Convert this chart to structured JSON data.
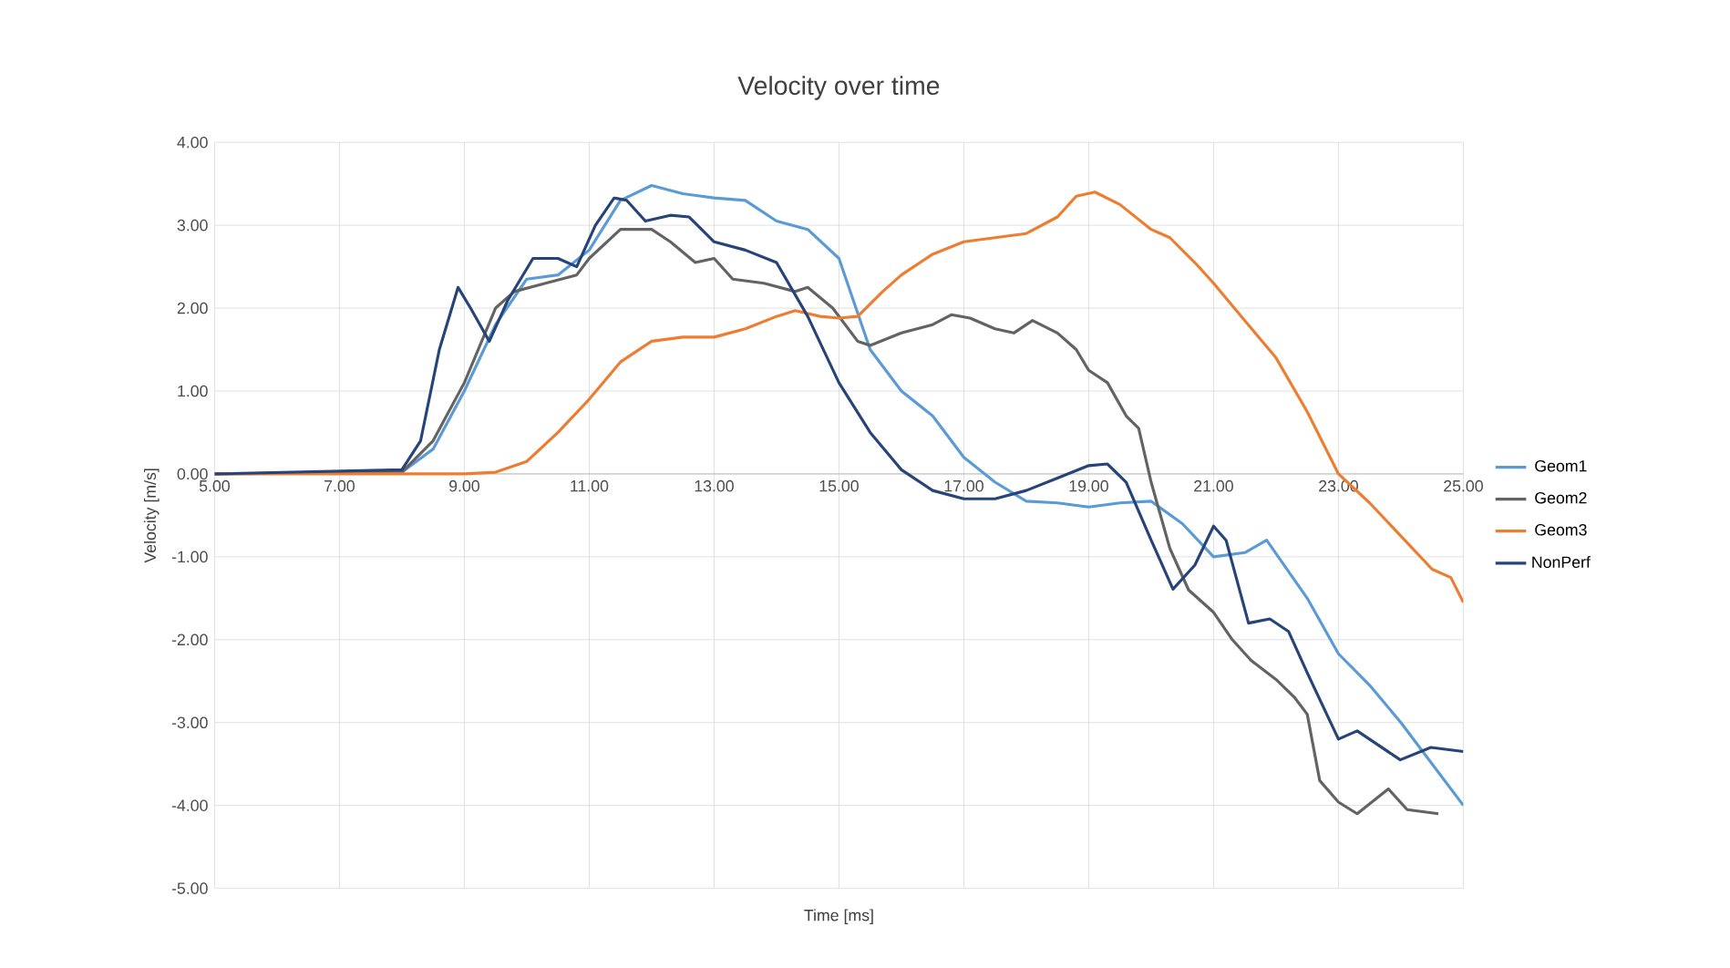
{
  "chart_data": {
    "type": "line",
    "title": "Velocity over time",
    "xlabel": "Time [ms]",
    "ylabel": "Velocity [m/s]",
    "xlim": [
      5,
      25
    ],
    "ylim": [
      -5,
      4
    ],
    "xticks": [
      {
        "value": 5,
        "label": "5.00"
      },
      {
        "value": 7,
        "label": "7.00"
      },
      {
        "value": 9,
        "label": "9.00"
      },
      {
        "value": 11,
        "label": "11.00"
      },
      {
        "value": 13,
        "label": "13.00"
      },
      {
        "value": 15,
        "label": "15.00"
      },
      {
        "value": 17,
        "label": "17.00"
      },
      {
        "value": 19,
        "label": "19.00"
      },
      {
        "value": 21,
        "label": "21.00"
      },
      {
        "value": 23,
        "label": "23.00"
      },
      {
        "value": 25,
        "label": "25.00"
      }
    ],
    "yticks": [
      {
        "value": -5,
        "label": "-5.00"
      },
      {
        "value": -4,
        "label": "-4.00"
      },
      {
        "value": -3,
        "label": "-3.00"
      },
      {
        "value": -2,
        "label": "-2.00"
      },
      {
        "value": -1,
        "label": "-1.00"
      },
      {
        "value": 0,
        "label": "0.00"
      },
      {
        "value": 1,
        "label": "1.00"
      },
      {
        "value": 2,
        "label": "2.00"
      },
      {
        "value": 3,
        "label": "3.00"
      },
      {
        "value": 4,
        "label": "4.00"
      }
    ],
    "grid": true,
    "legend": "right",
    "marker": "none",
    "line_style": "solid",
    "series": [
      {
        "name": "Geom1",
        "color": "#5b9bd5",
        "x": [
          5,
          8,
          8.5,
          9,
          9.5,
          10,
          10.5,
          11,
          11.5,
          12,
          12.5,
          13,
          13.5,
          14,
          14.5,
          15,
          15.5,
          16,
          16.5,
          17,
          17.5,
          18,
          18.5,
          19,
          19.5,
          20,
          20.5,
          21,
          21.5,
          21.85,
          22.5,
          23,
          23.5,
          24,
          24.5,
          25
        ],
        "values": [
          0,
          0.02,
          0.3,
          1.0,
          1.8,
          2.35,
          2.4,
          2.7,
          3.3,
          3.48,
          3.38,
          3.33,
          3.3,
          3.05,
          2.95,
          2.6,
          1.5,
          1.0,
          0.7,
          0.2,
          -0.1,
          -0.33,
          -0.35,
          -0.4,
          -0.35,
          -0.33,
          -0.6,
          -1.0,
          -0.95,
          -0.8,
          -1.5,
          -2.17,
          -2.55,
          -3.0,
          -3.5,
          -4.0
        ]
      },
      {
        "name": "Geom2",
        "color": "#636363",
        "x": [
          5,
          8,
          8.5,
          9,
          9.5,
          9.8,
          10.3,
          10.8,
          11,
          11.5,
          12,
          12.3,
          12.7,
          13,
          13.3,
          13.8,
          14.3,
          14.5,
          14.9,
          15.3,
          15.5,
          16,
          16.5,
          16.8,
          17.1,
          17.5,
          17.8,
          18.1,
          18.5,
          18.8,
          19,
          19.3,
          19.6,
          19.8,
          20,
          20.3,
          20.6,
          21,
          21.3,
          21.6,
          22,
          22.3,
          22.5,
          22.7,
          23,
          23.3,
          23.8,
          24.1,
          24.6
        ],
        "values": [
          0,
          0.02,
          0.4,
          1.1,
          2.0,
          2.2,
          2.3,
          2.4,
          2.6,
          2.95,
          2.95,
          2.8,
          2.55,
          2.6,
          2.35,
          2.3,
          2.2,
          2.25,
          2.0,
          1.6,
          1.55,
          1.7,
          1.8,
          1.92,
          1.88,
          1.75,
          1.7,
          1.85,
          1.7,
          1.5,
          1.25,
          1.1,
          0.7,
          0.55,
          -0.1,
          -0.9,
          -1.4,
          -1.67,
          -2.0,
          -2.25,
          -2.48,
          -2.7,
          -2.9,
          -3.7,
          -3.96,
          -4.1,
          -3.8,
          -4.05,
          -4.1
        ]
      },
      {
        "name": "Geom3",
        "color": "#ed7d31",
        "x": [
          5,
          9,
          9.5,
          10,
          10.5,
          11,
          11.5,
          12,
          12.5,
          13,
          13.5,
          14,
          14.3,
          14.7,
          15,
          15.3,
          15.7,
          16,
          16.5,
          17,
          17.5,
          18,
          18.5,
          18.8,
          19.1,
          19.5,
          20,
          20.3,
          20.7,
          21,
          21.5,
          22,
          22.5,
          23,
          23.5,
          24,
          24.5,
          24.8,
          25
        ],
        "values": [
          0,
          0,
          0.02,
          0.15,
          0.5,
          0.9,
          1.35,
          1.6,
          1.65,
          1.65,
          1.75,
          1.9,
          1.97,
          1.9,
          1.88,
          1.9,
          2.2,
          2.4,
          2.65,
          2.8,
          2.85,
          2.9,
          3.1,
          3.35,
          3.4,
          3.25,
          2.95,
          2.85,
          2.55,
          2.3,
          1.85,
          1.4,
          0.75,
          0.0,
          -0.35,
          -0.75,
          -1.15,
          -1.25,
          -1.55
        ]
      },
      {
        "name": "NonPerf",
        "color": "#264478",
        "x": [
          5,
          8,
          8.3,
          8.6,
          8.9,
          9.1,
          9.4,
          9.7,
          10.1,
          10.5,
          10.8,
          11.1,
          11.4,
          11.6,
          11.9,
          12.3,
          12.6,
          13,
          13.5,
          14,
          14.5,
          15,
          15.5,
          16,
          16.5,
          17,
          17.5,
          18,
          18.5,
          19,
          19.3,
          19.6,
          20,
          20.35,
          20.7,
          21,
          21.2,
          21.56,
          21.9,
          22.2,
          22.5,
          23,
          23.3,
          23.99,
          24.48,
          25
        ],
        "values": [
          0,
          0.05,
          0.4,
          1.5,
          2.25,
          2.0,
          1.6,
          2.1,
          2.6,
          2.6,
          2.5,
          3.0,
          3.33,
          3.3,
          3.05,
          3.12,
          3.1,
          2.8,
          2.7,
          2.55,
          1.9,
          1.1,
          0.5,
          0.05,
          -0.2,
          -0.3,
          -0.3,
          -0.2,
          -0.05,
          0.1,
          0.12,
          -0.1,
          -0.8,
          -1.39,
          -1.1,
          -0.63,
          -0.8,
          -1.8,
          -1.75,
          -1.9,
          -2.4,
          -3.2,
          -3.1,
          -3.45,
          -3.3,
          -3.35
        ]
      }
    ]
  }
}
